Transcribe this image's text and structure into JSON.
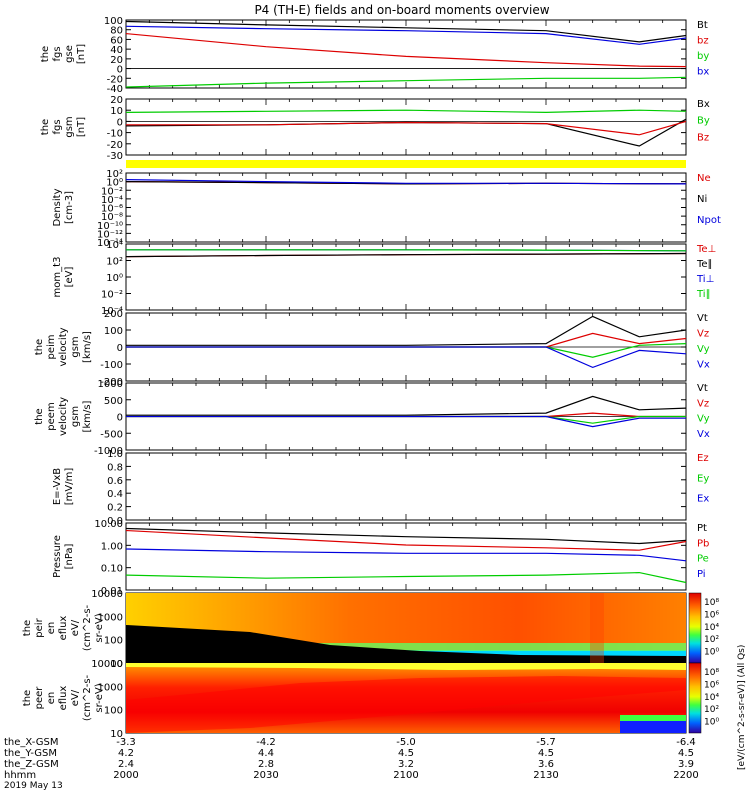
{
  "title": "P4 (TH-E) fields and on-board moments overview",
  "footer": {
    "rows": [
      {
        "label": "the_X-GSM",
        "values": [
          "-3.3",
          "-4.2",
          "-5.0",
          "-5.7",
          "-6.4"
        ]
      },
      {
        "label": "the_Y-GSM",
        "values": [
          "4.2",
          "4.4",
          "4.5",
          "4.5",
          "4.5"
        ]
      },
      {
        "label": "the_Z-GSM",
        "values": [
          "2.4",
          "2.8",
          "3.2",
          "3.6",
          "3.9"
        ]
      },
      {
        "label": "hhmm",
        "values": [
          "2000",
          "2030",
          "2100",
          "2130",
          "2200"
        ]
      }
    ],
    "date": "2019 May 13"
  },
  "colors": {
    "black": "#000000",
    "red": "#dd0000",
    "green": "#00cc00",
    "blue": "#0000dd",
    "yellow": "#ffff00"
  },
  "chart_data": [
    {
      "type": "line",
      "panel": "fgs-gse",
      "ylabel": [
        "the",
        "fgs",
        "gse",
        "[nT]"
      ],
      "ylim": [
        -40,
        100
      ],
      "yticks": [
        "100",
        "80",
        "60",
        "40",
        "20",
        "0",
        "-20",
        "-40"
      ],
      "x": [
        "2000",
        "2030",
        "2100",
        "2130",
        "2150",
        "2200"
      ],
      "series": [
        {
          "name": "Bt",
          "color": "#000000",
          "values": [
            97,
            90,
            84,
            78,
            55,
            68
          ]
        },
        {
          "name": "bz",
          "color": "#dd0000",
          "values": [
            72,
            45,
            25,
            12,
            5,
            4
          ]
        },
        {
          "name": "by",
          "color": "#00cc00",
          "values": [
            -38,
            -30,
            -25,
            -20,
            -20,
            -18
          ]
        },
        {
          "name": "bx",
          "color": "#0000dd",
          "values": [
            87,
            82,
            78,
            72,
            50,
            63
          ]
        }
      ]
    },
    {
      "type": "line",
      "panel": "fgs-gsm",
      "ylabel": [
        "the",
        "fgs",
        "gsm",
        "[nT]"
      ],
      "ylim": [
        -30,
        20
      ],
      "yticks": [
        "20",
        "10",
        "0",
        "-10",
        "-20",
        "-30"
      ],
      "x": [
        "2000",
        "2030",
        "2100",
        "2130",
        "2150",
        "2200"
      ],
      "series": [
        {
          "name": "Bx",
          "color": "#000000",
          "values": [
            -4,
            -3,
            -1,
            -2,
            -22,
            2
          ]
        },
        {
          "name": "By",
          "color": "#00cc00",
          "values": [
            8,
            9,
            10,
            8,
            10,
            9
          ]
        },
        {
          "name": "Bz",
          "color": "#dd0000",
          "values": [
            -3,
            -3,
            -1,
            -2,
            -12,
            0
          ]
        }
      ]
    },
    {
      "type": "line",
      "panel": "density",
      "scale": "log",
      "ylabel": [
        "Density",
        "[cm-3]"
      ],
      "ylim": [
        1e-14,
        100
      ],
      "yticks": [
        "10²",
        "10⁰",
        "10⁻²",
        "10⁻⁴",
        "10⁻⁶",
        "10⁻⁸",
        "10⁻¹⁰",
        "10⁻¹²",
        "10⁻¹⁴"
      ],
      "x": [
        "2000",
        "2030",
        "2100",
        "2130",
        "2200"
      ],
      "series": [
        {
          "name": "Ne",
          "color": "#dd0000",
          "values": [
            1.0,
            0.6,
            0.3,
            0.4,
            0.3
          ]
        },
        {
          "name": "Ni",
          "color": "#000000",
          "values": [
            1.0,
            0.6,
            0.3,
            0.4,
            0.3
          ]
        },
        {
          "name": "Npot",
          "color": "#0000dd",
          "values": [
            3,
            1,
            0.4,
            0.4,
            0.3
          ]
        }
      ]
    },
    {
      "type": "line",
      "panel": "temperature",
      "scale": "log",
      "ylabel": [
        "mom_t3",
        "[eV]"
      ],
      "ylim": [
        0.0001,
        10000
      ],
      "yticks": [
        "10⁴",
        "10²",
        "10⁰",
        "10⁻²",
        "10⁻⁴"
      ],
      "x": [
        "2000",
        "2030",
        "2100",
        "2130",
        "2200"
      ],
      "series": [
        {
          "name": "Te⊥",
          "color": "#dd0000",
          "values": [
            300,
            400,
            500,
            600,
            700
          ]
        },
        {
          "name": "Te∥",
          "color": "#000000",
          "values": [
            300,
            400,
            500,
            600,
            700
          ]
        },
        {
          "name": "Ti⊥",
          "color": "#0000dd",
          "values": [
            2000,
            2000,
            2000,
            1800,
            1500
          ]
        },
        {
          "name": "Ti∥",
          "color": "#00cc00",
          "values": [
            2000,
            2000,
            2000,
            1800,
            1500
          ]
        }
      ]
    },
    {
      "type": "line",
      "panel": "peim-velocity",
      "ylabel": [
        "the",
        "peim",
        "velocity",
        "gsm",
        "[km/s]"
      ],
      "ylim": [
        -200,
        200
      ],
      "yticks": [
        "200",
        "100",
        "0",
        "-100",
        "-200"
      ],
      "x": [
        "2000",
        "2030",
        "2100",
        "2130",
        "2140",
        "2150",
        "2200"
      ],
      "series": [
        {
          "name": "Vt",
          "color": "#000000",
          "values": [
            10,
            10,
            10,
            20,
            180,
            60,
            100
          ]
        },
        {
          "name": "Vz",
          "color": "#dd0000",
          "values": [
            0,
            0,
            0,
            0,
            80,
            20,
            50
          ]
        },
        {
          "name": "Vy",
          "color": "#00cc00",
          "values": [
            0,
            0,
            0,
            0,
            -60,
            10,
            20
          ]
        },
        {
          "name": "Vx",
          "color": "#0000dd",
          "values": [
            0,
            0,
            0,
            0,
            -120,
            -20,
            -40
          ]
        }
      ]
    },
    {
      "type": "line",
      "panel": "peem-velocity",
      "ylabel": [
        "the",
        "peem",
        "velocity",
        "gsm",
        "[km/s]"
      ],
      "ylim": [
        -1000,
        1000
      ],
      "yticks": [
        "1000",
        "500",
        "0",
        "-500",
        "-1000"
      ],
      "x": [
        "2000",
        "2030",
        "2100",
        "2130",
        "2140",
        "2150",
        "2200"
      ],
      "series": [
        {
          "name": "Vt",
          "color": "#000000",
          "values": [
            40,
            40,
            40,
            100,
            600,
            200,
            250
          ]
        },
        {
          "name": "Vz",
          "color": "#dd0000",
          "values": [
            0,
            0,
            0,
            0,
            100,
            0,
            0
          ]
        },
        {
          "name": "Vy",
          "color": "#00cc00",
          "values": [
            0,
            0,
            0,
            0,
            -200,
            0,
            0
          ]
        },
        {
          "name": "Vx",
          "color": "#0000dd",
          "values": [
            0,
            0,
            0,
            0,
            -300,
            -50,
            -50
          ]
        }
      ]
    },
    {
      "type": "line",
      "panel": "e-field",
      "ylabel": [
        "E=-VxB",
        "[mV/m]"
      ],
      "ylim": [
        0.0,
        1.0
      ],
      "yticks": [
        "1.0",
        "0.8",
        "0.6",
        "0.4",
        "0.2",
        "0.0"
      ],
      "series": [
        {
          "name": "Ez",
          "color": "#dd0000",
          "values": []
        },
        {
          "name": "Ey",
          "color": "#00cc00",
          "values": []
        },
        {
          "name": "Ex",
          "color": "#0000dd",
          "values": []
        }
      ]
    },
    {
      "type": "line",
      "panel": "pressure",
      "scale": "log",
      "ylabel": [
        "Pressure",
        "[nPa]"
      ],
      "ylim": [
        0.02,
        10
      ],
      "yticks": [
        "10.00",
        "1.00",
        "0.10",
        "0.01"
      ],
      "x": [
        "2000",
        "2030",
        "2100",
        "2130",
        "2150",
        "2200"
      ],
      "series": [
        {
          "name": "Pt",
          "color": "#000000",
          "values": [
            6.0,
            4.0,
            2.8,
            2.2,
            1.5,
            2.0
          ]
        },
        {
          "name": "Pb",
          "color": "#dd0000",
          "values": [
            5.0,
            2.5,
            1.3,
            1.0,
            0.8,
            1.8
          ]
        },
        {
          "name": "Pe",
          "color": "#00cc00",
          "values": [
            0.08,
            0.06,
            0.07,
            0.08,
            0.1,
            0.04
          ]
        },
        {
          "name": "Pi",
          "color": "#0000dd",
          "values": [
            0.9,
            0.7,
            0.6,
            0.6,
            0.5,
            0.3
          ]
        }
      ]
    },
    {
      "type": "heatmap",
      "panel": "peir-eflux",
      "scale": "log",
      "ylabel": [
        "the",
        "peir",
        "en",
        "eflux",
        "eV/",
        "(cm^2-s-",
        "sr-eV)"
      ],
      "ylim": [
        10,
        20000
      ],
      "yticks": [
        "10000",
        "1000",
        "100",
        "10"
      ]
    },
    {
      "type": "heatmap",
      "panel": "peer-eflux",
      "scale": "log",
      "ylabel": [
        "the",
        "peer",
        "en",
        "eflux",
        "eV/",
        "(cm^2-s-",
        "sr-eV)"
      ],
      "ylim": [
        10,
        20000
      ],
      "yticks": [
        "10000",
        "1000",
        "100",
        "10"
      ]
    }
  ],
  "colorbar": {
    "label": "[eV/(cm^2-s-sr-eV)] (All Qs)",
    "label2": "[eV/(cm^2-s-sr-eV)]",
    "ticks": [
      "10⁸",
      "10⁶",
      "10⁴",
      "10²",
      "10⁰"
    ]
  }
}
